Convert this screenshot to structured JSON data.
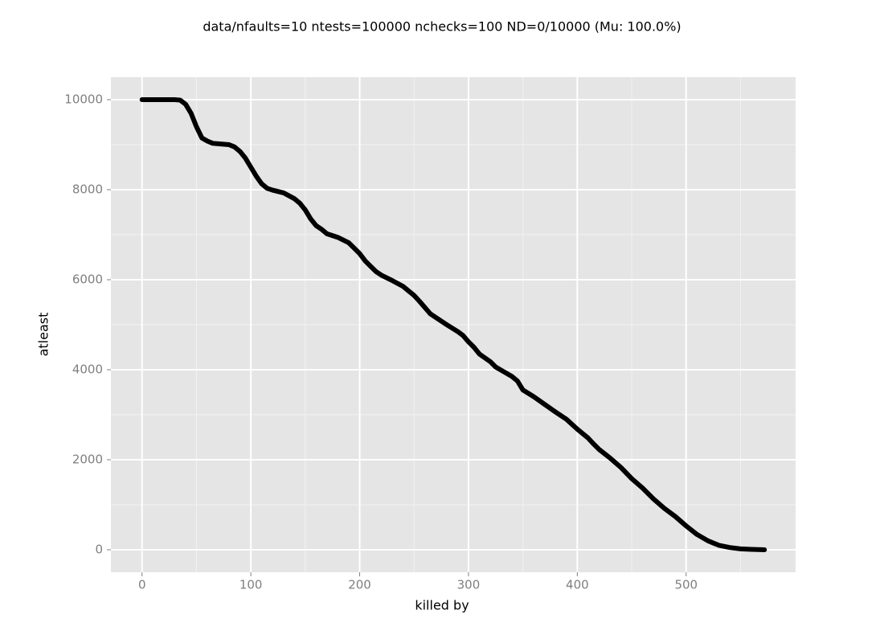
{
  "chart_data": {
    "type": "line",
    "title": "data/nfaults=10 ntests=100000 nchecks=100  ND=0/10000 (Mu: 100.0%)",
    "x_label": "killed by",
    "y_label": "atleast",
    "xlim": [
      -28.6,
      600.6
    ],
    "ylim": [
      -500,
      10500
    ],
    "xticks": [
      0,
      100,
      200,
      300,
      400,
      500
    ],
    "yticks": [
      0,
      2000,
      4000,
      6000,
      8000,
      10000
    ],
    "x_minor_ticks": [
      50,
      150,
      250,
      350,
      450,
      550
    ],
    "y_minor_ticks": [
      1000,
      3000,
      5000,
      7000,
      9000
    ],
    "grid": true,
    "series": [
      {
        "color": "#000000",
        "x": [
          0,
          10,
          20,
          30,
          35,
          40,
          45,
          50,
          55,
          60,
          65,
          70,
          80,
          85,
          90,
          95,
          100,
          105,
          110,
          115,
          120,
          130,
          140,
          145,
          150,
          155,
          160,
          165,
          170,
          180,
          190,
          195,
          200,
          205,
          210,
          215,
          220,
          230,
          240,
          250,
          255,
          260,
          265,
          270,
          280,
          290,
          295,
          300,
          305,
          310,
          320,
          325,
          330,
          340,
          345,
          350,
          360,
          370,
          380,
          390,
          400,
          410,
          415,
          420,
          430,
          440,
          450,
          460,
          470,
          480,
          490,
          500,
          510,
          520,
          530,
          540,
          550,
          560,
          572
        ],
        "values": [
          10000,
          10000,
          10000,
          10000,
          9990,
          9900,
          9700,
          9400,
          9150,
          9080,
          9030,
          9020,
          9000,
          8950,
          8850,
          8700,
          8500,
          8300,
          8130,
          8030,
          7990,
          7930,
          7800,
          7700,
          7550,
          7350,
          7200,
          7120,
          7020,
          6940,
          6820,
          6700,
          6580,
          6420,
          6300,
          6180,
          6100,
          5980,
          5850,
          5650,
          5520,
          5380,
          5240,
          5160,
          5000,
          4850,
          4760,
          4620,
          4500,
          4350,
          4180,
          4060,
          3990,
          3850,
          3750,
          3550,
          3400,
          3230,
          3060,
          2900,
          2680,
          2480,
          2350,
          2230,
          2040,
          1830,
          1580,
          1370,
          1130,
          920,
          740,
          530,
          340,
          200,
          100,
          50,
          20,
          8,
          0
        ]
      }
    ]
  }
}
